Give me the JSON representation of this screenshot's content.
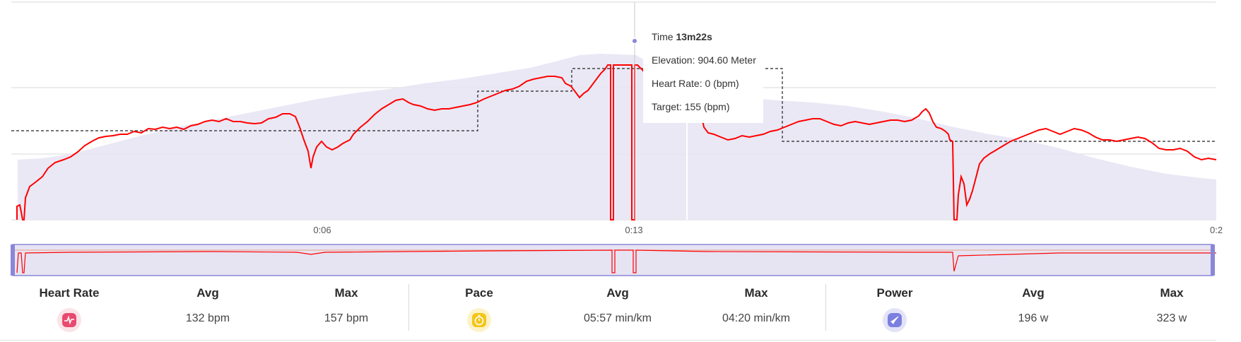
{
  "tooltip": {
    "time_label": "Time",
    "time_value": "13m22s",
    "elevation": "Elevation: 904.60 Meter",
    "heart_rate": "Heart Rate: 0 (bpm)",
    "target": "Target: 155 (bpm)"
  },
  "x_axis": {
    "ticks": [
      "0:06",
      "0:13",
      "0:2"
    ]
  },
  "stats": {
    "heart_rate": {
      "title": "Heart Rate",
      "avg_label": "Avg",
      "max_label": "Max",
      "avg": "132 bpm",
      "max": "157 bpm",
      "icon": "heart-rate-icon",
      "color": "#e84a6f"
    },
    "pace": {
      "title": "Pace",
      "avg_label": "Avg",
      "max_label": "Max",
      "avg": "05:57 min/km",
      "max": "04:20 min/km",
      "icon": "stopwatch-icon",
      "color": "#f5c518"
    },
    "power": {
      "title": "Power",
      "avg_label": "Avg",
      "max_label": "Max",
      "avg": "196 w",
      "max": "323 w",
      "icon": "rocket-icon",
      "color": "#7b7fe0"
    }
  },
  "colors": {
    "heart_rate_line": "#ff0000",
    "elevation_fill": "#e6e4f3",
    "target_line": "#222222",
    "navigator_border": "#8a86d8"
  }
}
